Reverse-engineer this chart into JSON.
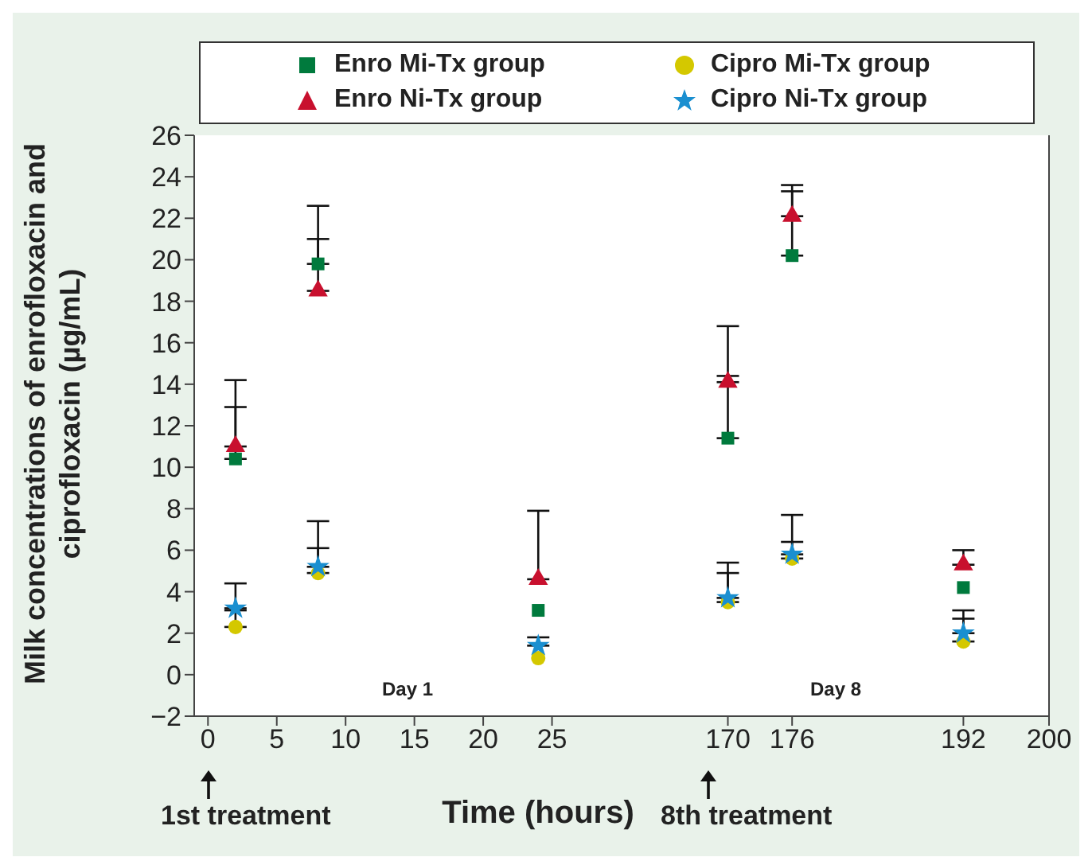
{
  "chart_data": [
    {
      "type": "scatter",
      "xlabel": "Time (hours)",
      "ylabel": "Milk concentrations of enrofloxacin and ciprofloxacin (µg/mL)",
      "legend": "top",
      "x": [
        2,
        8,
        24
      ],
      "xlim": [
        -1,
        30
      ],
      "xticks": [
        0,
        5,
        10,
        15,
        20,
        25
      ],
      "ylim": [
        -2,
        26
      ],
      "yticks": [
        {
          "value": -2,
          "label": "−2"
        },
        0,
        2,
        4,
        6,
        8,
        10,
        12,
        14,
        16,
        18,
        20,
        22,
        24,
        26
      ],
      "series": [
        {
          "name": "Enro Mi-Tx group",
          "color": "#007a3d",
          "marker": "square",
          "values": [
            10.4,
            19.8,
            3.1
          ],
          "errors": [
            [
              10.4,
              12.9
            ],
            [
              19.8,
              21.0
            ],
            null
          ]
        },
        {
          "name": "Cipro Mi-Tx group",
          "color": "#d4c800",
          "marker": "circle",
          "values": [
            2.3,
            4.9,
            0.8
          ],
          "errors": [
            [
              2.3,
              3.1
            ],
            [
              4.9,
              6.1
            ],
            null
          ]
        },
        {
          "name": "Enro Ni-Tx group",
          "color": "#c8102e",
          "marker": "triangle",
          "values": [
            11.0,
            18.5,
            4.6
          ],
          "errors": [
            [
              11.0,
              14.2
            ],
            [
              18.5,
              22.6
            ],
            [
              4.6,
              7.9
            ]
          ]
        },
        {
          "name": "Cipro Ni-Tx group",
          "color": "#1a8fd0",
          "marker": "star",
          "values": [
            3.2,
            5.2,
            1.4
          ],
          "errors": [
            [
              3.2,
              4.4
            ],
            [
              5.2,
              7.4
            ],
            [
              1.4,
              1.8
            ]
          ]
        }
      ],
      "annotations": [
        "Day 1",
        "1st treatment"
      ]
    },
    {
      "type": "scatter",
      "tick_labels": "x",
      "x": [
        170,
        176,
        192
      ],
      "xlim": [
        160,
        200
      ],
      "xticks": [
        170,
        176,
        192,
        200
      ],
      "ylim": [
        -2,
        26
      ],
      "series": [
        {
          "color": "#007a3d",
          "marker": "square",
          "values": [
            11.4,
            20.2,
            4.2
          ],
          "errors": [
            [
              11.4,
              14.4
            ],
            [
              20.2,
              23.3
            ],
            null
          ]
        },
        {
          "color": "#d4c800",
          "marker": "circle",
          "values": [
            3.5,
            5.6,
            1.6
          ],
          "errors": [
            [
              3.5,
              4.9
            ],
            [
              5.6,
              6.4
            ],
            [
              1.6,
              2.7
            ]
          ]
        },
        {
          "color": "#c8102e",
          "marker": "triangle",
          "values": [
            14.1,
            22.1,
            5.3
          ],
          "errors": [
            [
              14.1,
              16.8
            ],
            [
              22.1,
              23.6
            ],
            [
              5.3,
              6.0
            ]
          ]
        },
        {
          "color": "#1a8fd0",
          "marker": "star",
          "values": [
            3.7,
            5.8,
            2.0
          ],
          "errors": [
            [
              3.7,
              5.4
            ],
            [
              5.8,
              7.7
            ],
            [
              2.0,
              3.1
            ]
          ]
        }
      ],
      "annotations": [
        "Day 8",
        "8th treatment"
      ]
    }
  ]
}
